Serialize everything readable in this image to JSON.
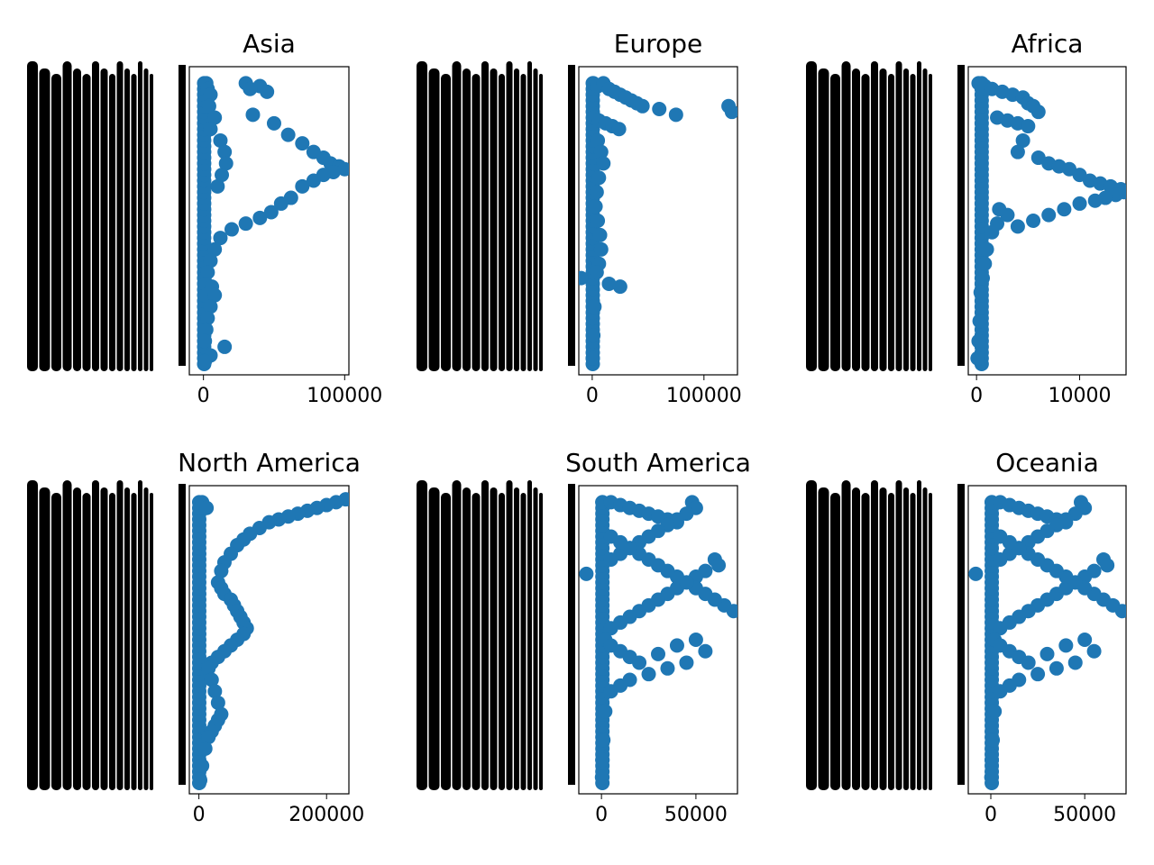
{
  "colors": {
    "marker": "#1f77b4",
    "frame": "#000000",
    "ticklabel_bar": "#000000",
    "background": "#ffffff"
  },
  "figure": {
    "note_ytick_labels": "Y-axis tick labels are densely overplotted date strings rendered as solid black bars (illegible)."
  },
  "chart_data": [
    {
      "type": "scatter",
      "title": "Asia",
      "xlabel": "",
      "ylabel": "",
      "xticks": [
        0,
        100000
      ],
      "xtick_labels": [
        "0",
        "100000"
      ],
      "xlim": [
        -10000,
        103000
      ],
      "ylim": [
        0,
        100
      ],
      "grid": false,
      "series": [
        {
          "x": [
            2000,
            3000,
            5000,
            4000,
            8000,
            5000,
            12000,
            15000,
            16000,
            13000,
            10000,
            30000,
            40000,
            45000,
            33000,
            35000,
            50000,
            60000,
            70000,
            78000,
            85000,
            90000,
            96000,
            100000,
            92000,
            85000,
            78000,
            70000,
            62000,
            55000,
            48000,
            40000,
            30000,
            20000,
            12000,
            8000,
            5000,
            3000,
            2000,
            1500,
            6000,
            8000,
            5000,
            3000,
            2000,
            1000,
            15000,
            5000,
            1000
          ],
          "y": [
            98,
            96,
            94,
            90,
            86,
            82,
            78,
            74,
            70,
            66,
            62,
            98,
            97,
            95,
            96,
            87,
            84,
            80,
            77,
            74,
            72,
            70,
            69,
            68,
            67,
            66,
            64,
            62,
            58,
            56,
            53,
            51,
            49,
            47,
            44,
            40,
            36,
            32,
            28,
            24,
            27,
            24,
            20,
            16,
            12,
            8,
            6,
            3,
            1
          ]
        }
      ]
    },
    {
      "type": "scatter",
      "title": "Europe",
      "xlabel": "",
      "ylabel": "",
      "xticks": [
        0,
        100000
      ],
      "xtick_labels": [
        "0",
        "100000"
      ],
      "xlim": [
        -12000,
        130000
      ],
      "ylim": [
        0,
        100
      ],
      "grid": false,
      "series": [
        {
          "x": [
            1000,
            5000,
            10000,
            15000,
            20000,
            25000,
            30000,
            35000,
            40000,
            45000,
            60000,
            75000,
            122000,
            125000,
            2000,
            6000,
            12000,
            18000,
            24000,
            5000,
            8000,
            10000,
            6000,
            4000,
            3000,
            5000,
            7000,
            8000,
            6000,
            4000,
            -10000,
            15000,
            25000,
            2000,
            1000,
            500
          ],
          "y": [
            98,
            97,
            98,
            96,
            95,
            94,
            93,
            92,
            91,
            90,
            89,
            87,
            90,
            88,
            86,
            85,
            84,
            83,
            82,
            78,
            74,
            70,
            65,
            60,
            55,
            50,
            45,
            40,
            35,
            32,
            30,
            28,
            27,
            20,
            10,
            2
          ]
        }
      ]
    },
    {
      "type": "scatter",
      "title": "Africa",
      "xlabel": "",
      "ylabel": "",
      "xticks": [
        0,
        10000
      ],
      "xtick_labels": [
        "0",
        "10000"
      ],
      "xlim": [
        -800,
        14500
      ],
      "ylim": [
        0,
        100
      ],
      "grid": false,
      "series": [
        {
          "x": [
            200,
            800,
            1500,
            2500,
            3500,
            4500,
            5000,
            5500,
            6000,
            2000,
            3000,
            4000,
            5000,
            4500,
            4000,
            6000,
            7000,
            8000,
            9000,
            10000,
            11000,
            12000,
            13000,
            14000,
            14300,
            13500,
            12500,
            11500,
            10000,
            8500,
            7000,
            5500,
            4000,
            3000,
            2200,
            2000,
            1500,
            1000,
            800,
            600,
            400,
            300,
            200,
            100
          ],
          "y": [
            98,
            97,
            96,
            95,
            94,
            93,
            91,
            90,
            88,
            86,
            85,
            84,
            83,
            78,
            74,
            72,
            70,
            69,
            68,
            66,
            64,
            63,
            62,
            61,
            60,
            59,
            58,
            57,
            56,
            54,
            52,
            50,
            48,
            52,
            54,
            49,
            46,
            40,
            35,
            30,
            25,
            15,
            8,
            2
          ]
        }
      ]
    },
    {
      "type": "scatter",
      "title": "North America",
      "xlabel": "",
      "ylabel": "",
      "xticks": [
        0,
        200000
      ],
      "xtick_labels": [
        "0",
        "200000"
      ],
      "xlim": [
        -15000,
        235000
      ],
      "ylim": [
        0,
        100
      ],
      "grid": false,
      "series": [
        {
          "x": [
            5000,
            12000,
            230000,
            215000,
            200000,
            185000,
            170000,
            155000,
            140000,
            125000,
            110000,
            95000,
            80000,
            70000,
            60000,
            50000,
            40000,
            35000,
            30000,
            35000,
            40000,
            50000,
            55000,
            60000,
            65000,
            70000,
            75000,
            70000,
            60000,
            50000,
            40000,
            30000,
            20000,
            15000,
            20000,
            25000,
            30000,
            35000,
            30000,
            25000,
            20000,
            15000,
            10000,
            5000,
            2000
          ],
          "y": [
            98,
            96,
            99,
            98,
            97,
            96,
            95,
            94,
            93,
            92,
            91,
            89,
            87,
            85,
            83,
            80,
            77,
            74,
            70,
            68,
            66,
            64,
            62,
            60,
            58,
            56,
            54,
            52,
            50,
            48,
            46,
            44,
            42,
            40,
            36,
            32,
            28,
            24,
            22,
            20,
            18,
            16,
            12,
            6,
            1
          ]
        }
      ]
    },
    {
      "type": "scatter",
      "title": "South America",
      "xlabel": "",
      "ylabel": "",
      "xticks": [
        0,
        50000
      ],
      "xtick_labels": [
        "0",
        "50000"
      ],
      "xlim": [
        -12000,
        72000
      ],
      "ylim": [
        0,
        100
      ],
      "grid": false,
      "series": [
        {
          "x": [
            500,
            5000,
            10000,
            15000,
            20000,
            25000,
            30000,
            35000,
            40000,
            48000,
            50000,
            45000,
            40000,
            35000,
            30000,
            25000,
            20000,
            15000,
            10000,
            5000,
            60000,
            62000,
            55000,
            50000,
            45000,
            40000,
            35000,
            30000,
            25000,
            20000,
            15000,
            10000,
            5000,
            70000,
            65000,
            60000,
            55000,
            50000,
            45000,
            40000,
            35000,
            30000,
            25000,
            20000,
            15000,
            10000,
            5000,
            -8000,
            2000,
            5000,
            10000,
            15000,
            20000,
            30000,
            40000,
            50000,
            55000,
            45000,
            35000,
            25000,
            15000,
            10000,
            5000,
            2000,
            1000,
            500,
            300
          ],
          "y": [
            98,
            98,
            97,
            96,
            95,
            94,
            93,
            92,
            91,
            98,
            96,
            94,
            92,
            90,
            88,
            86,
            84,
            82,
            80,
            78,
            78,
            76,
            74,
            72,
            70,
            68,
            66,
            64,
            62,
            60,
            58,
            56,
            54,
            60,
            62,
            64,
            66,
            68,
            70,
            72,
            74,
            76,
            78,
            80,
            82,
            84,
            86,
            73,
            50,
            48,
            46,
            44,
            42,
            45,
            48,
            50,
            46,
            42,
            40,
            38,
            36,
            34,
            32,
            25,
            15,
            8,
            2
          ]
        }
      ]
    },
    {
      "type": "scatter",
      "title": "Oceania",
      "xlabel": "",
      "ylabel": "",
      "xticks": [
        0,
        50000
      ],
      "xtick_labels": [
        "0",
        "50000"
      ],
      "xlim": [
        -12000,
        72000
      ],
      "ylim": [
        0,
        100
      ],
      "grid": false,
      "series": [
        {
          "x": [
            500,
            5000,
            10000,
            15000,
            20000,
            25000,
            30000,
            35000,
            40000,
            48000,
            50000,
            45000,
            40000,
            35000,
            30000,
            25000,
            20000,
            15000,
            10000,
            5000,
            60000,
            62000,
            55000,
            50000,
            45000,
            40000,
            35000,
            30000,
            25000,
            20000,
            15000,
            10000,
            5000,
            70000,
            65000,
            60000,
            55000,
            50000,
            45000,
            40000,
            35000,
            30000,
            25000,
            20000,
            15000,
            10000,
            5000,
            -8000,
            2000,
            5000,
            10000,
            15000,
            20000,
            30000,
            40000,
            50000,
            55000,
            45000,
            35000,
            25000,
            15000,
            10000,
            5000,
            2000,
            1000,
            500,
            300
          ],
          "y": [
            98,
            98,
            97,
            96,
            95,
            94,
            93,
            92,
            91,
            98,
            96,
            94,
            92,
            90,
            88,
            86,
            84,
            82,
            80,
            78,
            78,
            76,
            74,
            72,
            70,
            68,
            66,
            64,
            62,
            60,
            58,
            56,
            54,
            60,
            62,
            64,
            66,
            68,
            70,
            72,
            74,
            76,
            78,
            80,
            82,
            84,
            86,
            73,
            50,
            48,
            46,
            44,
            42,
            45,
            48,
            50,
            46,
            42,
            40,
            38,
            36,
            34,
            32,
            25,
            15,
            8,
            2
          ]
        }
      ]
    }
  ]
}
